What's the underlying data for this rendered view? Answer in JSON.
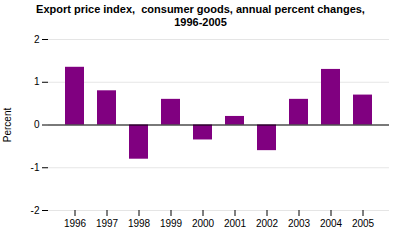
{
  "chart_data": {
    "type": "bar",
    "title": "Export price index,  consumer goods, annual percent changes,\n1996-2005",
    "categories": [
      "1996",
      "1997",
      "1998",
      "1999",
      "2000",
      "2001",
      "2002",
      "2003",
      "2004",
      "2005"
    ],
    "values": [
      1.35,
      0.8,
      -0.8,
      0.6,
      -0.35,
      0.2,
      -0.6,
      0.6,
      1.3,
      0.7
    ],
    "color": "#800080",
    "ylabel": "Percent",
    "ylim": [
      -2,
      2
    ],
    "yticks": [
      -2,
      -1,
      0,
      1,
      2
    ],
    "grid": true
  }
}
